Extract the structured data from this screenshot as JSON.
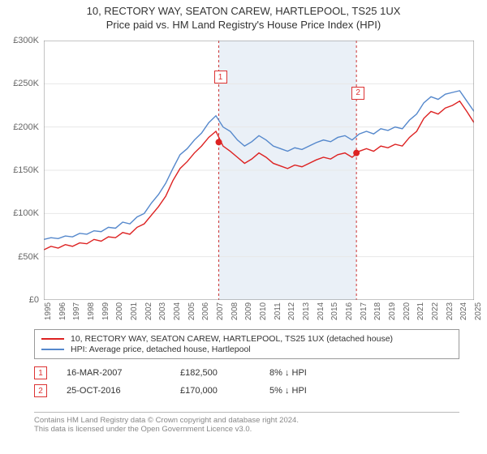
{
  "title": "10, RECTORY WAY, SEATON CAREW, HARTLEPOOL, TS25 1UX",
  "subtitle": "Price paid vs. HM Land Registry's House Price Index (HPI)",
  "chart": {
    "type": "line",
    "background_color": "#ffffff",
    "grid_color": "#e7e7e7",
    "shade_color": "#eaf0f7",
    "xlim": [
      1995,
      2025
    ],
    "ylim": [
      0,
      300000
    ],
    "ytick_step": 50000,
    "ytick_labels": [
      "£0",
      "£50K",
      "£100K",
      "£150K",
      "£200K",
      "£250K",
      "£300K"
    ],
    "xtick_step": 1,
    "xtick_labels": [
      "1995",
      "1996",
      "1997",
      "1998",
      "1999",
      "2000",
      "2001",
      "2002",
      "2003",
      "2004",
      "2005",
      "2006",
      "2007",
      "2008",
      "2009",
      "2010",
      "2011",
      "2012",
      "2013",
      "2014",
      "2015",
      "2016",
      "2017",
      "2018",
      "2019",
      "2020",
      "2021",
      "2022",
      "2023",
      "2024",
      "2025"
    ],
    "shade_start": 2007.2,
    "shade_end": 2016.8,
    "title_fontsize": 13,
    "label_fontsize": 11,
    "line_width": 1.4,
    "series": [
      {
        "name": "property",
        "label": "10, RECTORY WAY, SEATON CAREW, HARTLEPOOL, TS25 1UX (detached house)",
        "color": "#dd2222",
        "data": [
          [
            1995,
            58000
          ],
          [
            1995.5,
            62000
          ],
          [
            1996,
            60000
          ],
          [
            1996.5,
            64000
          ],
          [
            1997,
            62000
          ],
          [
            1997.5,
            66000
          ],
          [
            1998,
            65000
          ],
          [
            1998.5,
            70000
          ],
          [
            1999,
            68000
          ],
          [
            1999.5,
            73000
          ],
          [
            2000,
            72000
          ],
          [
            2000.5,
            78000
          ],
          [
            2001,
            76000
          ],
          [
            2001.5,
            84000
          ],
          [
            2002,
            88000
          ],
          [
            2002.5,
            98000
          ],
          [
            2003,
            108000
          ],
          [
            2003.5,
            120000
          ],
          [
            2004,
            138000
          ],
          [
            2004.5,
            152000
          ],
          [
            2005,
            160000
          ],
          [
            2005.5,
            170000
          ],
          [
            2006,
            178000
          ],
          [
            2006.5,
            188000
          ],
          [
            2007,
            195000
          ],
          [
            2007.5,
            178000
          ],
          [
            2008,
            172000
          ],
          [
            2008.5,
            165000
          ],
          [
            2009,
            158000
          ],
          [
            2009.5,
            163000
          ],
          [
            2010,
            170000
          ],
          [
            2010.5,
            165000
          ],
          [
            2011,
            158000
          ],
          [
            2011.5,
            155000
          ],
          [
            2012,
            152000
          ],
          [
            2012.5,
            156000
          ],
          [
            2013,
            154000
          ],
          [
            2013.5,
            158000
          ],
          [
            2014,
            162000
          ],
          [
            2014.5,
            165000
          ],
          [
            2015,
            163000
          ],
          [
            2015.5,
            168000
          ],
          [
            2016,
            170000
          ],
          [
            2016.5,
            165000
          ],
          [
            2017,
            172000
          ],
          [
            2017.5,
            175000
          ],
          [
            2018,
            172000
          ],
          [
            2018.5,
            178000
          ],
          [
            2019,
            176000
          ],
          [
            2019.5,
            180000
          ],
          [
            2020,
            178000
          ],
          [
            2020.5,
            188000
          ],
          [
            2021,
            195000
          ],
          [
            2021.5,
            210000
          ],
          [
            2022,
            218000
          ],
          [
            2022.5,
            215000
          ],
          [
            2023,
            222000
          ],
          [
            2023.5,
            225000
          ],
          [
            2024,
            230000
          ],
          [
            2024.5,
            218000
          ],
          [
            2025,
            205000
          ]
        ]
      },
      {
        "name": "hpi",
        "label": "HPI: Average price, detached house, Hartlepool",
        "color": "#5588cc",
        "data": [
          [
            1995,
            70000
          ],
          [
            1995.5,
            72000
          ],
          [
            1996,
            71000
          ],
          [
            1996.5,
            74000
          ],
          [
            1997,
            73000
          ],
          [
            1997.5,
            77000
          ],
          [
            1998,
            76000
          ],
          [
            1998.5,
            80000
          ],
          [
            1999,
            79000
          ],
          [
            1999.5,
            84000
          ],
          [
            2000,
            83000
          ],
          [
            2000.5,
            90000
          ],
          [
            2001,
            88000
          ],
          [
            2001.5,
            96000
          ],
          [
            2002,
            100000
          ],
          [
            2002.5,
            112000
          ],
          [
            2003,
            122000
          ],
          [
            2003.5,
            135000
          ],
          [
            2004,
            152000
          ],
          [
            2004.5,
            168000
          ],
          [
            2005,
            175000
          ],
          [
            2005.5,
            185000
          ],
          [
            2006,
            193000
          ],
          [
            2006.5,
            205000
          ],
          [
            2007,
            213000
          ],
          [
            2007.5,
            200000
          ],
          [
            2008,
            195000
          ],
          [
            2008.5,
            185000
          ],
          [
            2009,
            178000
          ],
          [
            2009.5,
            183000
          ],
          [
            2010,
            190000
          ],
          [
            2010.5,
            185000
          ],
          [
            2011,
            178000
          ],
          [
            2011.5,
            175000
          ],
          [
            2012,
            172000
          ],
          [
            2012.5,
            176000
          ],
          [
            2013,
            174000
          ],
          [
            2013.5,
            178000
          ],
          [
            2014,
            182000
          ],
          [
            2014.5,
            185000
          ],
          [
            2015,
            183000
          ],
          [
            2015.5,
            188000
          ],
          [
            2016,
            190000
          ],
          [
            2016.5,
            185000
          ],
          [
            2017,
            192000
          ],
          [
            2017.5,
            195000
          ],
          [
            2018,
            192000
          ],
          [
            2018.5,
            198000
          ],
          [
            2019,
            196000
          ],
          [
            2019.5,
            200000
          ],
          [
            2020,
            198000
          ],
          [
            2020.5,
            208000
          ],
          [
            2021,
            215000
          ],
          [
            2021.5,
            228000
          ],
          [
            2022,
            235000
          ],
          [
            2022.5,
            232000
          ],
          [
            2023,
            238000
          ],
          [
            2023.5,
            240000
          ],
          [
            2024,
            242000
          ],
          [
            2024.5,
            230000
          ],
          [
            2025,
            218000
          ]
        ]
      }
    ],
    "markers": [
      {
        "label": "1",
        "x": 2007.2,
        "y": 182500,
        "badge_dx": -6,
        "badge_dy": -88
      },
      {
        "label": "2",
        "x": 2016.8,
        "y": 170000,
        "badge_dx": -6,
        "badge_dy": -82
      }
    ],
    "marker_color": "#dd2222",
    "marker_radius": 4,
    "dashed_line_color": "#cc3333"
  },
  "legend": {
    "border_color": "#999999"
  },
  "transactions": [
    {
      "badge": "1",
      "date": "16-MAR-2007",
      "price": "£182,500",
      "diff": "8% ↓ HPI"
    },
    {
      "badge": "2",
      "date": "25-OCT-2016",
      "price": "£170,000",
      "diff": "5% ↓ HPI"
    }
  ],
  "footer": {
    "line1": "Contains HM Land Registry data © Crown copyright and database right 2024.",
    "line2": "This data is licensed under the Open Government Licence v3.0."
  }
}
